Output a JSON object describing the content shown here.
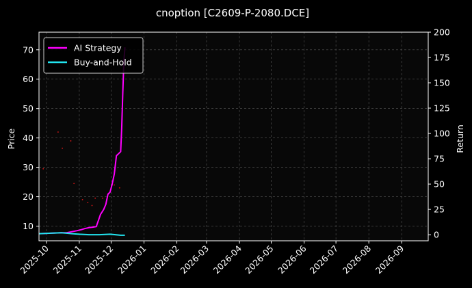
{
  "chart_data": {
    "type": "line",
    "title": "cnoption [C2609-P-2080.DCE]",
    "ylabel": "Price",
    "y2label": "Return",
    "ylim": [
      5,
      76
    ],
    "y2lim": [
      -6,
      200
    ],
    "yticks": [
      10,
      20,
      30,
      40,
      50,
      60,
      70
    ],
    "y2ticks": [
      0,
      25,
      50,
      75,
      100,
      125,
      150,
      175,
      200
    ],
    "xlim": [
      "2025-09-24",
      "2026-09-26"
    ],
    "xticks": [
      "2025-10-01",
      "2025-11-01",
      "2025-12-01",
      "2026-01-01",
      "2026-02-01",
      "2026-03-01",
      "2026-04-01",
      "2026-05-01",
      "2026-06-01",
      "2026-07-01",
      "2026-08-01",
      "2026-09-01"
    ],
    "xticklabels": [
      "2025-10",
      "2025-11",
      "2025-12",
      "2026-01",
      "2026-02",
      "2026-03",
      "2026-04",
      "2026-05",
      "2026-06",
      "2026-07",
      "2026-08",
      "2026-09"
    ],
    "grid": true,
    "legend_position": "top-left",
    "series": [
      {
        "name": "AI Strategy",
        "color": "#ff00ff",
        "axis": "right",
        "x": [
          "2025-09-24",
          "2025-10-05",
          "2025-10-15",
          "2025-10-20",
          "2025-10-25",
          "2025-10-30",
          "2025-11-03",
          "2025-11-06",
          "2025-11-10",
          "2025-11-14",
          "2025-11-17",
          "2025-11-19",
          "2025-11-21",
          "2025-11-24",
          "2025-11-26",
          "2025-11-28",
          "2025-11-30",
          "2025-12-02",
          "2025-12-04",
          "2025-12-06",
          "2025-12-08",
          "2025-12-10",
          "2025-12-11",
          "2025-12-12",
          "2025-12-13",
          "2025-12-14"
        ],
        "y": [
          1,
          1.5,
          2,
          2,
          3,
          4,
          5,
          6,
          7,
          7.5,
          8,
          14,
          20,
          25,
          30,
          40,
          42,
          50,
          60,
          78,
          80,
          82,
          105,
          140,
          170,
          185
        ]
      },
      {
        "name": "Buy-and-Hold",
        "color": "#22e5f0",
        "axis": "right",
        "x": [
          "2025-09-24",
          "2025-10-05",
          "2025-10-15",
          "2025-10-20",
          "2025-10-25",
          "2025-11-01",
          "2025-11-10",
          "2025-11-20",
          "2025-11-30",
          "2025-12-05",
          "2025-12-10",
          "2025-12-14"
        ],
        "y": [
          1,
          1.5,
          2,
          1.5,
          1,
          0.5,
          0,
          0,
          0.5,
          0,
          -0.5,
          -0.5
        ]
      },
      {
        "name": "",
        "color": "#ff1a1a",
        "axis": "left",
        "kind": "scatter",
        "x": [
          "2025-09-28",
          "2025-10-12",
          "2025-10-16",
          "2025-10-24",
          "2025-10-27",
          "2025-11-04",
          "2025-11-09",
          "2025-11-13",
          "2025-11-16",
          "2025-11-23",
          "2025-12-04",
          "2025-12-09"
        ],
        "y": [
          29.5,
          42,
          36.5,
          39,
          24.5,
          19,
          18,
          17,
          19.5,
          19.5,
          24,
          23
        ]
      }
    ]
  }
}
